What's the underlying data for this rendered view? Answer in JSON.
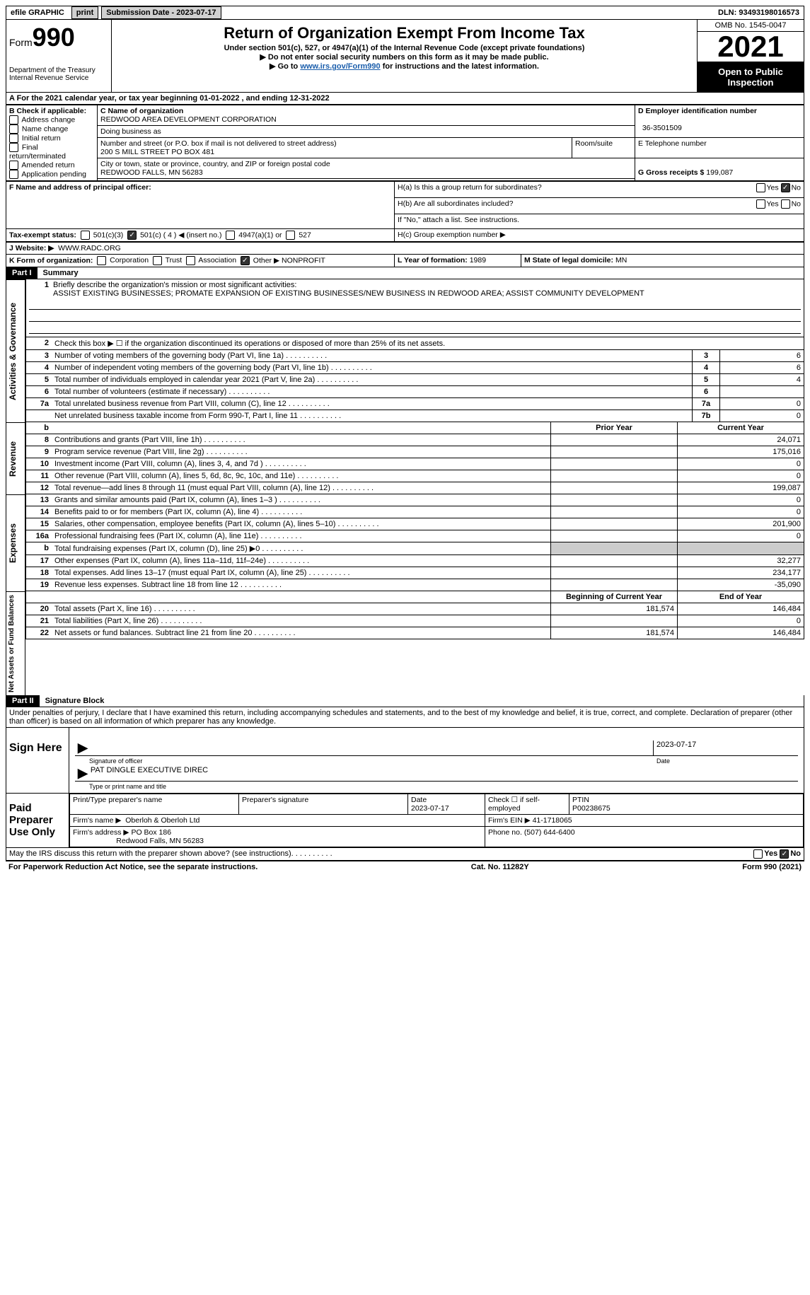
{
  "topbar": {
    "efile": "efile GRAPHIC",
    "print": "print",
    "submission": "Submission Date - 2023-07-17",
    "dln": "DLN: 93493198016573"
  },
  "header": {
    "form_label": "Form",
    "form_num": "990",
    "dept": "Department of the Treasury",
    "service": "Internal Revenue Service",
    "title": "Return of Organization Exempt From Income Tax",
    "subtitle": "Under section 501(c), 527, or 4947(a)(1) of the Internal Revenue Code (except private foundations)",
    "note1": "▶ Do not enter social security numbers on this form as it may be made public.",
    "note2_pre": "▶ Go to ",
    "note2_link": "www.irs.gov/Form990",
    "note2_post": " for instructions and the latest information.",
    "omb": "OMB No. 1545-0047",
    "year": "2021",
    "inspection": "Open to Public Inspection"
  },
  "sectionA": {
    "line": "A For the 2021 calendar year, or tax year beginning 01-01-2022    , and ending 12-31-2022",
    "b_label": "B Check if applicable:",
    "opts": [
      "Address change",
      "Name change",
      "Initial return",
      "Final return/terminated",
      "Amended return",
      "Application pending"
    ],
    "c_label": "C Name of organization",
    "org_name": "REDWOOD AREA DEVELOPMENT CORPORATION",
    "dba": "Doing business as",
    "street_label": "Number and street (or P.O. box if mail is not delivered to street address)",
    "street": "200 S MILL STREET PO BOX 481",
    "room": "Room/suite",
    "city_label": "City or town, state or province, country, and ZIP or foreign postal code",
    "city": "REDWOOD FALLS, MN  56283",
    "d_label": "D Employer identification number",
    "ein": "36-3501509",
    "e_label": "E Telephone number",
    "g_label": "G Gross receipts $ ",
    "gross": "199,087",
    "f_label": "F Name and address of principal officer:",
    "ha_label": "H(a)  Is this a group return for subordinates?",
    "hb_label": "H(b)  Are all subordinates included?",
    "hb_note": "If \"No,\" attach a list. See instructions.",
    "hc_label": "H(c)  Group exemption number ▶",
    "i_label": "Tax-exempt status:",
    "i_501c3": "501(c)(3)",
    "i_501c": "501(c) ( 4 ) ◀ (insert no.)",
    "i_4947": "4947(a)(1) or",
    "i_527": "527",
    "j_label": "J   Website: ▶",
    "website": "WWW.RADC.ORG",
    "k_label": "K Form of organization:",
    "k_opts": [
      "Corporation",
      "Trust",
      "Association"
    ],
    "k_other": "Other ▶",
    "k_other_val": "NONPROFIT",
    "l_label": "L Year of formation: ",
    "l_val": "1989",
    "m_label": "M State of legal domicile: ",
    "m_val": "MN",
    "yes": "Yes",
    "no": "No"
  },
  "part1": {
    "label": "Part I",
    "title": "Summary",
    "side1": "Activities & Governance",
    "side2": "Revenue",
    "side3": "Expenses",
    "side4": "Net Assets or Fund Balances",
    "l1_label": "Briefly describe the organization's mission or most significant activities:",
    "l1_text": "ASSIST EXISTING BUSINESSES; PROMATE EXPANSION OF EXISTING BUSINESSES/NEW BUSINESS IN REDWOOD AREA; ASSIST COMMUNITY DEVELOPMENT",
    "l2": "Check this box ▶ ☐ if the organization discontinued its operations or disposed of more than 25% of its net assets.",
    "rows_a": [
      {
        "n": "3",
        "d": "Number of voting members of the governing body (Part VI, line 1a)",
        "b": "3",
        "v": "6"
      },
      {
        "n": "4",
        "d": "Number of independent voting members of the governing body (Part VI, line 1b)",
        "b": "4",
        "v": "6"
      },
      {
        "n": "5",
        "d": "Total number of individuals employed in calendar year 2021 (Part V, line 2a)",
        "b": "5",
        "v": "4"
      },
      {
        "n": "6",
        "d": "Total number of volunteers (estimate if necessary)",
        "b": "6",
        "v": ""
      },
      {
        "n": "7a",
        "d": "Total unrelated business revenue from Part VIII, column (C), line 12",
        "b": "7a",
        "v": "0"
      },
      {
        "n": "",
        "d": "Net unrelated business taxable income from Form 990-T, Part I, line 11",
        "b": "7b",
        "v": "0"
      }
    ],
    "col_prior": "Prior Year",
    "col_curr": "Current Year",
    "rows_r": [
      {
        "n": "8",
        "d": "Contributions and grants (Part VIII, line 1h)",
        "p": "",
        "c": "24,071"
      },
      {
        "n": "9",
        "d": "Program service revenue (Part VIII, line 2g)",
        "p": "",
        "c": "175,016"
      },
      {
        "n": "10",
        "d": "Investment income (Part VIII, column (A), lines 3, 4, and 7d )",
        "p": "",
        "c": "0"
      },
      {
        "n": "11",
        "d": "Other revenue (Part VIII, column (A), lines 5, 6d, 8c, 9c, 10c, and 11e)",
        "p": "",
        "c": "0"
      },
      {
        "n": "12",
        "d": "Total revenue—add lines 8 through 11 (must equal Part VIII, column (A), line 12)",
        "p": "",
        "c": "199,087"
      }
    ],
    "rows_e": [
      {
        "n": "13",
        "d": "Grants and similar amounts paid (Part IX, column (A), lines 1–3 )",
        "p": "",
        "c": "0"
      },
      {
        "n": "14",
        "d": "Benefits paid to or for members (Part IX, column (A), line 4)",
        "p": "",
        "c": "0"
      },
      {
        "n": "15",
        "d": "Salaries, other compensation, employee benefits (Part IX, column (A), lines 5–10)",
        "p": "",
        "c": "201,900"
      },
      {
        "n": "16a",
        "d": "Professional fundraising fees (Part IX, column (A), line 11e)",
        "p": "",
        "c": "0"
      },
      {
        "n": "b",
        "d": "Total fundraising expenses (Part IX, column (D), line 25) ▶0",
        "p": "shaded",
        "c": "shaded"
      },
      {
        "n": "17",
        "d": "Other expenses (Part IX, column (A), lines 11a–11d, 11f–24e)",
        "p": "",
        "c": "32,277"
      },
      {
        "n": "18",
        "d": "Total expenses. Add lines 13–17 (must equal Part IX, column (A), line 25)",
        "p": "",
        "c": "234,177"
      },
      {
        "n": "19",
        "d": "Revenue less expenses. Subtract line 18 from line 12",
        "p": "",
        "c": "-35,090"
      }
    ],
    "col_begin": "Beginning of Current Year",
    "col_end": "End of Year",
    "rows_n": [
      {
        "n": "20",
        "d": "Total assets (Part X, line 16)",
        "p": "181,574",
        "c": "146,484"
      },
      {
        "n": "21",
        "d": "Total liabilities (Part X, line 26)",
        "p": "",
        "c": "0"
      },
      {
        "n": "22",
        "d": "Net assets or fund balances. Subtract line 21 from line 20",
        "p": "181,574",
        "c": "146,484"
      }
    ]
  },
  "part2": {
    "label": "Part II",
    "title": "Signature Block",
    "declaration": "Under penalties of perjury, I declare that I have examined this return, including accompanying schedules and statements, and to the best of my knowledge and belief, it is true, correct, and complete. Declaration of preparer (other than officer) is based on all information of which preparer has any knowledge.",
    "sign_here": "Sign Here",
    "sig_officer": "Signature of officer",
    "sig_date": "Date",
    "sig_date_val": "2023-07-17",
    "sig_name": "PAT DINGLE  EXECUTIVE DIREC",
    "sig_name_label": "Type or print name and title",
    "paid": "Paid Preparer Use Only",
    "prep_name_label": "Print/Type preparer's name",
    "prep_sig_label": "Preparer's signature",
    "prep_date": "Date",
    "prep_date_val": "2023-07-17",
    "self_emp": "Check ☐ if self-employed",
    "ptin_label": "PTIN",
    "ptin": "P00238675",
    "firm_name_label": "Firm's name    ▶",
    "firm_name": "Oberloh & Oberloh Ltd",
    "firm_ein_label": "Firm's EIN ▶",
    "firm_ein": "41-1718065",
    "firm_addr_label": "Firm's address ▶",
    "firm_addr1": "PO Box 186",
    "firm_addr2": "Redwood Falls, MN  56283",
    "phone_label": "Phone no.",
    "phone": "(507) 644-6400",
    "discuss": "May the IRS discuss this return with the preparer shown above? (see instructions)"
  },
  "footer": {
    "paperwork": "For Paperwork Reduction Act Notice, see the separate instructions.",
    "cat": "Cat. No. 11282Y",
    "form": "Form 990 (2021)"
  }
}
